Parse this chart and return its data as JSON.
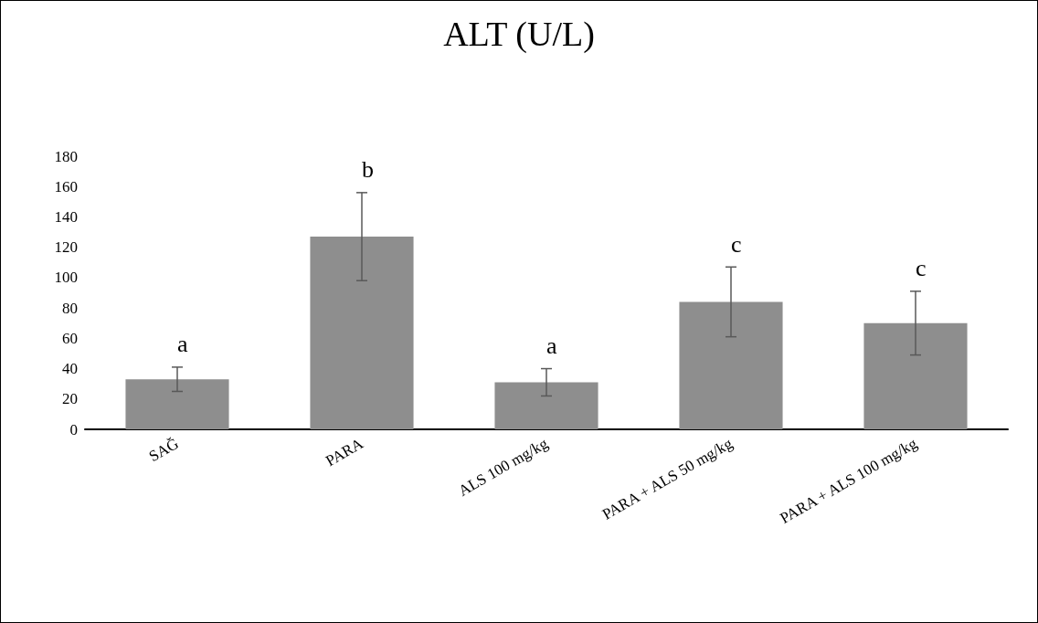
{
  "chart_data": {
    "type": "bar",
    "title": "ALT (U/L)",
    "categories": [
      "SAĞ",
      "PARA",
      "ALS 100 mg/kg",
      "PARA + ALS 50 mg/kg",
      "PARA + ALS 100 mg/kg"
    ],
    "values": [
      33,
      127,
      31,
      84,
      70
    ],
    "errors": [
      8,
      29,
      9,
      23,
      21
    ],
    "color": "#8e8e8e",
    "value_labels": [
      "a",
      "b",
      "a",
      "c",
      "c"
    ],
    "ylim": [
      0,
      180
    ],
    "yticks": [
      0,
      20,
      40,
      60,
      80,
      100,
      120,
      140,
      160,
      180
    ],
    "grid": false
  }
}
